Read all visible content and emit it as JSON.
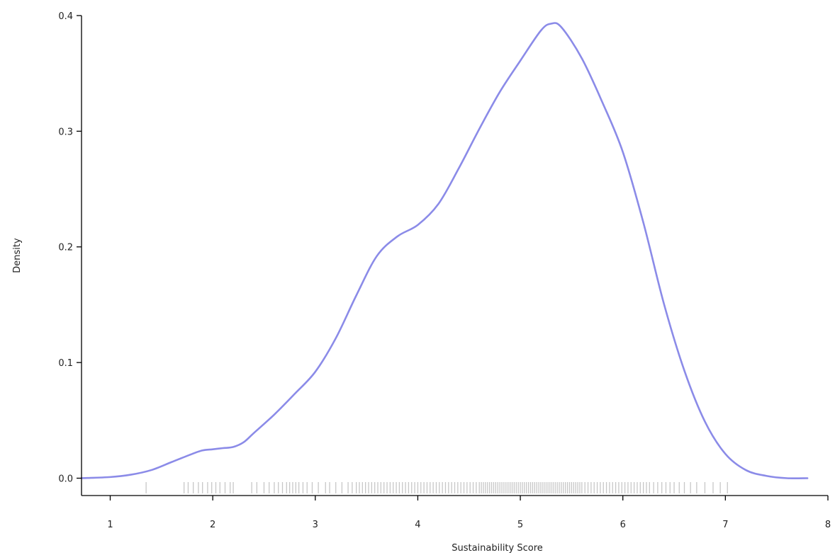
{
  "chart_data": {
    "type": "line",
    "subtype": "density",
    "title": "",
    "xlabel": "Sustainability Score",
    "ylabel": "Density",
    "xlim": [
      0.72,
      8.0
    ],
    "ylim": [
      -0.015,
      0.4
    ],
    "x_ticks": [
      1,
      2,
      3,
      4,
      5,
      6,
      7,
      8
    ],
    "x_tick_labels": [
      "1",
      "2",
      "3",
      "4",
      "5",
      "6",
      "7",
      "8"
    ],
    "y_ticks": [
      0.0,
      0.1,
      0.2,
      0.3,
      0.4
    ],
    "y_tick_labels": [
      "0.0",
      "0.1",
      "0.2",
      "0.3",
      "0.4"
    ],
    "grid": false,
    "legend": "none",
    "series": [
      {
        "color": "#8b8be8",
        "x": [
          0.72,
          1.0,
          1.2,
          1.4,
          1.6,
          1.8,
          1.9,
          2.0,
          2.1,
          2.2,
          2.3,
          2.4,
          2.6,
          2.8,
          3.0,
          3.2,
          3.4,
          3.6,
          3.8,
          4.0,
          4.2,
          4.4,
          4.6,
          4.8,
          5.0,
          5.2,
          5.3,
          5.4,
          5.6,
          5.8,
          6.0,
          6.2,
          6.4,
          6.6,
          6.8,
          7.0,
          7.2,
          7.4,
          7.6,
          7.8
        ],
        "y": [
          0.0,
          0.001,
          0.003,
          0.007,
          0.014,
          0.021,
          0.024,
          0.025,
          0.026,
          0.027,
          0.031,
          0.039,
          0.055,
          0.073,
          0.092,
          0.121,
          0.158,
          0.192,
          0.209,
          0.219,
          0.237,
          0.268,
          0.302,
          0.334,
          0.361,
          0.387,
          0.393,
          0.39,
          0.363,
          0.325,
          0.282,
          0.221,
          0.151,
          0.093,
          0.049,
          0.021,
          0.007,
          0.002,
          0.0,
          0.0
        ]
      }
    ],
    "rug": {
      "color": "#000000",
      "x": [
        1.35,
        1.72,
        1.76,
        1.81,
        1.86,
        1.9,
        1.95,
        1.99,
        2.03,
        2.07,
        2.12,
        2.17,
        2.2,
        2.38,
        2.43,
        2.5,
        2.55,
        2.6,
        2.64,
        2.68,
        2.72,
        2.75,
        2.78,
        2.81,
        2.84,
        2.88,
        2.92,
        2.97,
        3.03,
        3.1,
        3.14,
        3.2,
        3.26,
        3.32,
        3.36,
        3.4,
        3.43,
        3.46,
        3.49,
        3.52,
        3.55,
        3.58,
        3.61,
        3.64,
        3.67,
        3.7,
        3.73,
        3.76,
        3.79,
        3.82,
        3.85,
        3.88,
        3.91,
        3.94,
        3.97,
        4.0,
        4.03,
        4.06,
        4.09,
        4.12,
        4.15,
        4.18,
        4.21,
        4.24,
        4.27,
        4.3,
        4.33,
        4.36,
        4.39,
        4.42,
        4.45,
        4.48,
        4.51,
        4.54,
        4.57,
        4.6,
        4.62,
        4.64,
        4.66,
        4.68,
        4.7,
        4.72,
        4.74,
        4.76,
        4.78,
        4.8,
        4.82,
        4.84,
        4.86,
        4.88,
        4.9,
        4.92,
        4.94,
        4.96,
        4.98,
        5.0,
        5.02,
        5.04,
        5.06,
        5.08,
        5.1,
        5.12,
        5.14,
        5.16,
        5.18,
        5.2,
        5.22,
        5.24,
        5.26,
        5.28,
        5.3,
        5.32,
        5.34,
        5.36,
        5.38,
        5.4,
        5.42,
        5.44,
        5.46,
        5.48,
        5.5,
        5.52,
        5.54,
        5.56,
        5.58,
        5.6,
        5.63,
        5.66,
        5.69,
        5.72,
        5.75,
        5.78,
        5.81,
        5.84,
        5.87,
        5.9,
        5.93,
        5.96,
        5.99,
        6.02,
        6.05,
        6.08,
        6.11,
        6.14,
        6.17,
        6.2,
        6.23,
        6.26,
        6.3,
        6.34,
        6.38,
        6.42,
        6.46,
        6.5,
        6.55,
        6.6,
        6.66,
        6.72,
        6.8,
        6.88,
        6.95,
        7.02
      ]
    }
  }
}
